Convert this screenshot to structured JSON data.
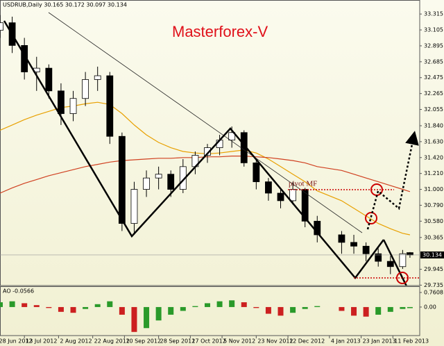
{
  "chart_data": [
    {
      "type": "candlestick",
      "title": "USDRUB,Daily 30.165 30.172 30.097 30.134",
      "annotations": [
        "Masterforex-V",
        "pivot MF"
      ],
      "x": [
        "2012-06-29",
        "2012-07-06",
        "2012-07-13",
        "2012-07-20",
        "2012-07-27",
        "2012-08-03",
        "2012-08-10",
        "2012-08-17",
        "2012-08-24",
        "2012-08-31",
        "2012-09-07",
        "2012-09-14",
        "2012-09-21",
        "2012-09-28",
        "2012-10-05",
        "2012-10-12",
        "2012-10-19",
        "2012-10-26",
        "2012-11-02",
        "2012-11-09",
        "2012-11-16",
        "2012-11-23",
        "2012-11-30",
        "2012-12-07",
        "2012-12-14",
        "2012-12-21",
        "2012-12-28",
        "2013-01-11",
        "2013-01-18",
        "2013-01-25",
        "2013-02-01",
        "2013-02-08",
        "2013-02-15",
        "2013-02-20"
      ],
      "open": [
        33.1,
        33.2,
        32.9,
        32.55,
        32.6,
        32.3,
        32.0,
        32.2,
        32.45,
        32.5,
        31.7,
        30.55,
        31.0,
        31.15,
        31.2,
        31.0,
        31.3,
        31.45,
        31.55,
        31.65,
        31.75,
        31.35,
        31.1,
        30.95,
        30.85,
        31.0,
        30.58,
        30.4,
        30.3,
        30.25,
        30.15,
        30.05,
        29.98,
        30.165
      ],
      "high": [
        33.3,
        33.28,
        33.0,
        32.75,
        32.65,
        32.4,
        32.3,
        32.55,
        32.62,
        32.55,
        31.75,
        31.1,
        31.25,
        31.3,
        31.25,
        31.4,
        31.5,
        31.6,
        31.72,
        31.83,
        31.78,
        31.4,
        31.15,
        31.0,
        31.1,
        31.02,
        30.65,
        30.45,
        30.4,
        30.3,
        30.22,
        30.12,
        30.2,
        30.172
      ],
      "low": [
        33.0,
        32.8,
        32.45,
        32.3,
        32.2,
        31.85,
        31.9,
        32.1,
        32.3,
        31.6,
        30.45,
        30.4,
        30.9,
        31.0,
        30.9,
        30.95,
        31.2,
        31.35,
        31.45,
        31.55,
        31.3,
        31.0,
        30.85,
        30.75,
        30.8,
        30.5,
        30.3,
        30.15,
        30.15,
        30.05,
        29.98,
        29.88,
        29.95,
        30.097
      ],
      "close": [
        33.2,
        32.9,
        32.55,
        32.6,
        32.3,
        32.0,
        32.2,
        32.45,
        32.5,
        31.7,
        30.55,
        31.0,
        31.15,
        31.2,
        31.0,
        31.3,
        31.45,
        31.55,
        31.65,
        31.75,
        31.35,
        31.1,
        30.95,
        30.85,
        31.0,
        30.58,
        30.4,
        30.3,
        30.25,
        30.15,
        30.05,
        29.98,
        30.15,
        30.134
      ],
      "up_color": "#ffffff",
      "down_color": "#000000",
      "lines": [
        {
          "color": "#e8a000",
          "values": [
            31.78,
            31.85,
            31.92,
            31.98,
            32.03,
            32.08,
            32.1,
            32.13,
            32.15,
            32.12,
            32.0,
            31.85,
            31.72,
            31.62,
            31.55,
            31.5,
            31.48,
            31.47,
            31.48,
            31.5,
            31.52,
            31.48,
            31.4,
            31.3,
            31.2,
            31.1,
            30.98,
            30.85,
            30.75,
            30.65,
            30.55,
            30.48,
            30.42,
            30.4
          ]
        },
        {
          "color": "#d04020",
          "values": [
            30.95,
            31.02,
            31.08,
            31.13,
            31.18,
            31.22,
            31.26,
            31.3,
            31.33,
            31.36,
            31.38,
            31.39,
            31.4,
            31.41,
            31.41,
            31.42,
            31.42,
            31.43,
            31.43,
            31.44,
            31.44,
            31.43,
            31.42,
            31.4,
            31.38,
            31.35,
            31.3,
            31.25,
            31.2,
            31.15,
            31.1,
            31.05,
            31.0,
            30.97
          ]
        }
      ],
      "xlim": [
        "2012-06-29",
        "2013-02-26"
      ],
      "xticks": [
        {
          "value": "2012-06-28",
          "label": "28 Jun 2012"
        },
        {
          "value": "2012-07-13",
          "label": "13 Jul 2012"
        },
        {
          "value": "2012-08-02",
          "label": "2 Aug 2012"
        },
        {
          "value": "2012-08-22",
          "label": "22 Aug 2012"
        },
        {
          "value": "2012-09-10",
          "label": "10 Sep 2012"
        },
        {
          "value": "2012-09-28",
          "label": "28 Sep 2012"
        },
        {
          "value": "2012-10-17",
          "label": "17 Oct 2012"
        },
        {
          "value": "2012-11-05",
          "label": "5 Nov 2012"
        },
        {
          "value": "2012-11-23",
          "label": "23 Nov 2012"
        },
        {
          "value": "2012-12-12",
          "label": "12 Dec 2012"
        },
        {
          "value": "2013-01-04",
          "label": "4 Jan 2013"
        },
        {
          "value": "2013-01-23",
          "label": "23 Jan 2013"
        },
        {
          "value": "2013-02-11",
          "label": "11 Feb 2013"
        }
      ],
      "ylim": [
        29.73,
        33.5
      ],
      "yticks": [
        33.315,
        33.105,
        32.895,
        32.685,
        32.475,
        32.265,
        32.055,
        {
          "value": 31.84,
          "label": "31.840"
        },
        {
          "value": 31.63,
          "label": "31.630"
        },
        {
          "value": 31.42,
          "label": "31.420"
        },
        {
          "value": 31.21,
          "label": "31.210"
        },
        {
          "value": 31,
          "label": "31.000"
        },
        {
          "value": 30.79,
          "label": "30.790"
        },
        {
          "value": 30.58,
          "label": "30.580"
        },
        30.365,
        29.945,
        29.735
      ],
      "last_price": 30.134
    },
    {
      "type": "bar",
      "title": "AO -0.0566",
      "x": [
        "2012-06-29",
        "2012-07-06",
        "2012-07-13",
        "2012-07-20",
        "2012-07-27",
        "2012-08-03",
        "2012-08-10",
        "2012-08-17",
        "2012-08-24",
        "2012-08-31",
        "2012-09-07",
        "2012-09-14",
        "2012-09-21",
        "2012-09-28",
        "2012-10-05",
        "2012-10-12",
        "2012-10-19",
        "2012-10-26",
        "2012-11-02",
        "2012-11-09",
        "2012-11-16",
        "2012-11-23",
        "2012-11-30",
        "2012-12-07",
        "2012-12-14",
        "2012-12-21",
        "2012-12-28",
        "2013-01-11",
        "2013-01-18",
        "2013-01-25",
        "2013-02-01",
        "2013-02-08",
        "2013-02-15",
        "2013-02-20"
      ],
      "values": [
        0.25,
        0.3,
        0.2,
        0.1,
        -0.05,
        -0.25,
        -0.3,
        -0.1,
        0.15,
        0.3,
        -0.4,
        -1.3,
        -1.1,
        -0.7,
        -0.4,
        -0.2,
        0.05,
        0.2,
        0.3,
        0.35,
        0.25,
        -0.05,
        -0.35,
        -0.45,
        -0.3,
        -0.1,
        0.05,
        -0.2,
        -0.45,
        -0.5,
        -0.4,
        -0.25,
        -0.1,
        -0.0566
      ],
      "up_color": "#2a9a2a",
      "down_color": "#cc2020",
      "xlim": [
        "2012-06-29",
        "2013-02-26"
      ],
      "ylim": [
        -1.49,
        1.05
      ],
      "yticks": [
        0.7608,
        {
          "value": 0,
          "label": "0.00"
        }
      ]
    }
  ]
}
